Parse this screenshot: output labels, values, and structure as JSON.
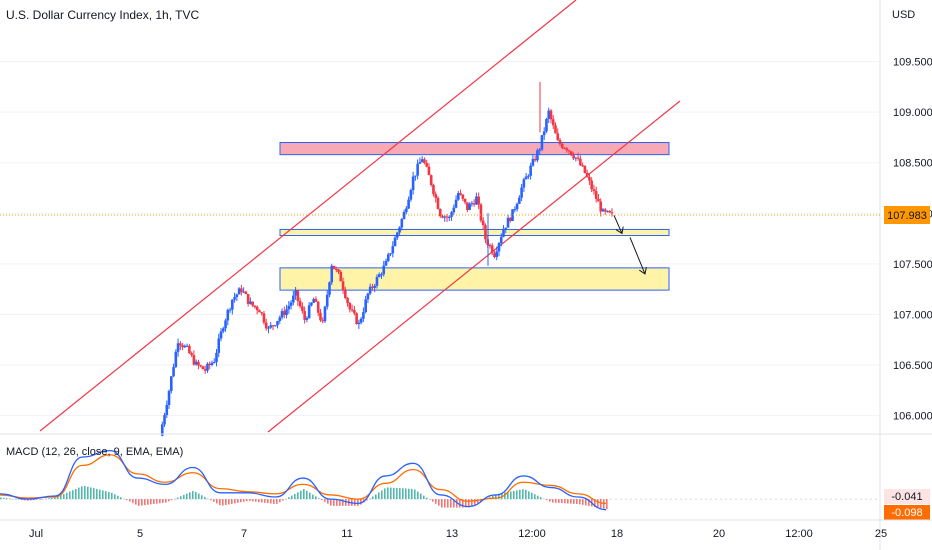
{
  "header": {
    "title": "U.S. Dollar Currency Index, 1h, TVC",
    "currency": "USD"
  },
  "macd_header": {
    "label": "MACD (12, 26, close, 9, EMA, EMA)"
  },
  "colors": {
    "up": "#2962ff",
    "down": "#f23645",
    "channel": "#f23645",
    "resistance_fill": "#f7a9b5",
    "support_fill": "#fff3a8",
    "zone_border": "#2962ff",
    "price_tag": "#ff9800",
    "macd_line": "#2962ff",
    "signal_line": "#ff6d00",
    "hist_pos": "#26a69a",
    "hist_neg": "#ef5350"
  },
  "chart_data": [
    {
      "type": "line",
      "title": "U.S. Dollar Currency Index, 1h, TVC",
      "ylabel": "USD",
      "ylim": [
        105.8,
        110.1
      ],
      "y_ticks": [
        "109.500",
        "109.000",
        "108.500",
        "108.000",
        "107.500",
        "107.000",
        "106.500",
        "106.000"
      ],
      "x_tick_labels": [
        "Jul",
        "5",
        "7",
        "11",
        "13",
        "12:00",
        "18",
        "20",
        "12:00",
        "25"
      ],
      "last_price": "107.983",
      "series": [
        {
          "values": [
            105.8,
            106.25,
            106.75,
            106.65,
            106.5,
            106.45,
            106.55,
            106.9,
            107.15,
            107.25,
            107.1,
            107.05,
            106.85,
            106.95,
            107.05,
            107.2,
            106.95,
            107.15,
            106.9,
            107.5,
            107.35,
            107.05,
            106.9,
            107.2,
            107.35,
            107.5,
            107.75,
            108.0,
            108.35,
            108.55,
            108.3,
            108.0,
            107.95,
            108.2,
            108.05,
            108.15,
            107.75,
            107.6,
            107.85,
            108.0,
            108.25,
            108.45,
            108.65,
            109.0,
            108.7,
            108.65,
            108.55,
            108.4,
            108.2,
            108.0,
            107.98
          ]
        }
      ],
      "zones": [
        {
          "name": "resistance",
          "top": 108.7,
          "bottom": 108.58
        },
        {
          "name": "support-upper",
          "top": 107.84,
          "bottom": 107.78
        },
        {
          "name": "support-lower",
          "top": 107.46,
          "bottom": 107.24
        }
      ],
      "projection": [
        107.98,
        107.82,
        107.42
      ]
    },
    {
      "type": "line",
      "title": "MACD (12, 26, close, 9, EMA, EMA)",
      "ylim": [
        -0.16,
        0.58
      ],
      "value_labels": [
        "-0.041",
        "-0.098"
      ],
      "series": [
        {
          "name": "MACD",
          "values": [
            0.05,
            0.0,
            0.03,
            0.4,
            0.46,
            0.2,
            0.14,
            0.3,
            0.06,
            0.06,
            0.02,
            0.2,
            0.0,
            -0.04,
            0.22,
            0.34,
            0.04,
            -0.07,
            0.04,
            0.22,
            0.11,
            0.02,
            -0.1
          ]
        },
        {
          "name": "Signal",
          "values": [
            0.04,
            0.01,
            0.02,
            0.32,
            0.42,
            0.24,
            0.16,
            0.25,
            0.1,
            0.07,
            0.05,
            0.14,
            0.04,
            0.0,
            0.15,
            0.28,
            0.09,
            -0.02,
            0.01,
            0.16,
            0.13,
            0.05,
            -0.04
          ]
        }
      ]
    }
  ]
}
